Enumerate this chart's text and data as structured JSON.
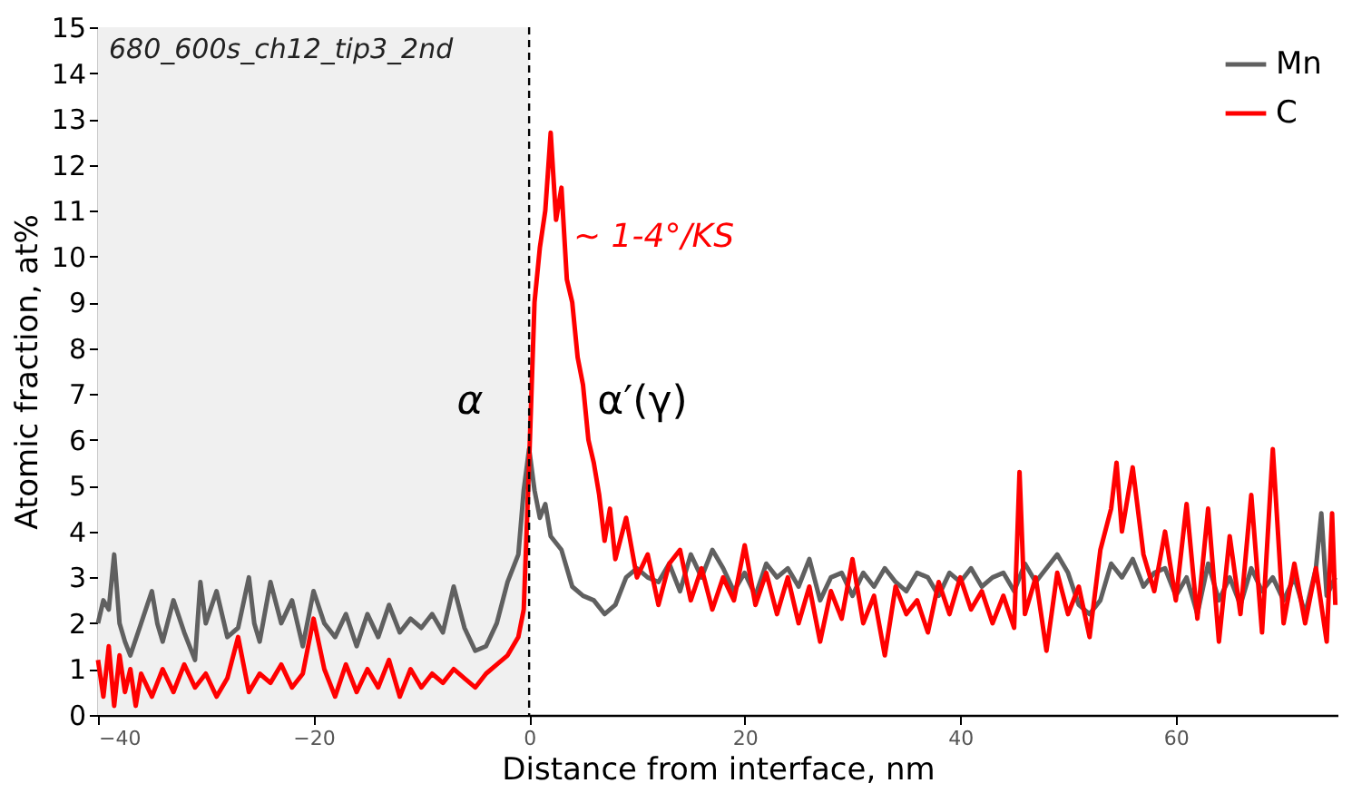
{
  "chart_data": {
    "type": "line",
    "xlabel": "Distance from interface, nm",
    "ylabel": "Atomic fraction, at%",
    "xlim": [
      -40,
      75
    ],
    "xticks": [
      {
        "value": -40,
        "label": "−40"
      },
      {
        "value": -20,
        "label": "−20"
      },
      0,
      20,
      40,
      60
    ],
    "ylim": [
      0,
      15
    ],
    "yticks": [
      0,
      1,
      2,
      3,
      4,
      5,
      6,
      7,
      8,
      9,
      10,
      11,
      12,
      13,
      14,
      15
    ],
    "grid": false,
    "legend": "top right",
    "line_style": "solid",
    "marker": "none",
    "bands": [
      {
        "axis": "x",
        "from": -40,
        "to": 0,
        "color": "#f0f0f0"
      }
    ],
    "ref_lines": [
      {
        "axis": "x",
        "value": 0,
        "color": "#000000",
        "line_style": "dashed"
      }
    ],
    "annotations": [
      "680_600s_ch12_tip3_2nd",
      "α",
      "α′(γ)",
      "~ 1-4°/KS"
    ],
    "series": [
      {
        "name": "Mn",
        "color": "#606060",
        "x": [
          -40,
          -39.5,
          -39,
          -38.5,
          -38,
          -37.5,
          -37,
          -36,
          -35,
          -34.5,
          -34,
          -33,
          -32,
          -31,
          -30.5,
          -30,
          -29,
          -28,
          -27,
          -26,
          -25.5,
          -25,
          -24,
          -23,
          -22,
          -21,
          -20,
          -19,
          -18,
          -17,
          -16,
          -15,
          -14,
          -13,
          -12,
          -11,
          -10,
          -9,
          -8,
          -7,
          -6,
          -5,
          -4,
          -3,
          -2,
          -1,
          -0.5,
          0,
          0.5,
          1,
          1.5,
          2,
          3,
          4,
          5,
          6,
          7,
          8,
          9,
          10,
          11,
          12,
          13,
          14,
          15,
          16,
          17,
          18,
          19,
          20,
          21,
          22,
          23,
          24,
          25,
          26,
          27,
          28,
          29,
          30,
          31,
          32,
          33,
          34,
          35,
          36,
          37,
          38,
          39,
          40,
          41,
          42,
          43,
          44,
          45,
          46,
          47,
          48,
          49,
          50,
          51,
          52,
          53,
          54,
          55,
          56,
          57,
          58,
          59,
          60,
          61,
          62,
          63,
          64,
          65,
          66,
          67,
          68,
          69,
          70,
          71,
          72,
          73,
          73.5,
          74,
          74.8
        ],
        "values": [
          2.0,
          2.5,
          2.3,
          3.5,
          2.0,
          1.6,
          1.3,
          2.0,
          2.7,
          2.0,
          1.6,
          2.5,
          1.8,
          1.2,
          2.9,
          2.0,
          2.7,
          1.7,
          1.9,
          3.0,
          2.0,
          1.6,
          2.9,
          2.0,
          2.5,
          1.5,
          2.7,
          2.0,
          1.7,
          2.2,
          1.5,
          2.2,
          1.7,
          2.4,
          1.8,
          2.1,
          1.9,
          2.2,
          1.8,
          2.8,
          1.9,
          1.4,
          1.5,
          2.0,
          2.9,
          3.5,
          4.9,
          5.8,
          4.9,
          4.3,
          4.6,
          3.9,
          3.6,
          2.8,
          2.6,
          2.5,
          2.2,
          2.4,
          3.0,
          3.2,
          3.0,
          2.9,
          3.3,
          2.7,
          3.5,
          3.0,
          3.6,
          3.2,
          2.7,
          3.1,
          2.6,
          3.3,
          3.0,
          3.2,
          2.8,
          3.4,
          2.5,
          3.0,
          3.1,
          2.6,
          3.1,
          2.8,
          3.2,
          2.9,
          2.7,
          3.1,
          3.0,
          2.6,
          3.1,
          2.9,
          3.2,
          2.8,
          3.0,
          3.1,
          2.7,
          3.3,
          2.9,
          3.2,
          3.5,
          3.1,
          2.4,
          2.2,
          2.5,
          3.3,
          3.0,
          3.4,
          2.8,
          3.1,
          3.2,
          2.6,
          3.0,
          2.2,
          3.3,
          2.5,
          3.0,
          2.4,
          3.2,
          2.7,
          3.0,
          2.5,
          3.0,
          2.2,
          3.2,
          4.4,
          2.6,
          3.0
        ]
      },
      {
        "name": "C",
        "color": "#ff0000",
        "x": [
          -40,
          -39.5,
          -39,
          -38.5,
          -38,
          -37.5,
          -37,
          -36.5,
          -36,
          -35,
          -34,
          -33,
          -32,
          -31,
          -30,
          -29,
          -28,
          -27,
          -26,
          -25,
          -24,
          -23,
          -22,
          -21,
          -20,
          -19,
          -18,
          -17,
          -16,
          -15,
          -14,
          -13,
          -12,
          -11,
          -10,
          -9,
          -8,
          -7,
          -6,
          -5,
          -4,
          -3,
          -2,
          -1,
          -0.5,
          0,
          0.5,
          1,
          1.5,
          2,
          2.5,
          3,
          3.5,
          4,
          4.5,
          5,
          5.5,
          6,
          6.5,
          7,
          7.5,
          8,
          9,
          10,
          11,
          12,
          13,
          14,
          15,
          16,
          17,
          18,
          19,
          20,
          21,
          22,
          23,
          24,
          25,
          26,
          27,
          28,
          29,
          30,
          31,
          32,
          33,
          34,
          35,
          36,
          37,
          38,
          39,
          40,
          41,
          42,
          43,
          44,
          45,
          45.5,
          46,
          47,
          48,
          49,
          50,
          51,
          52,
          53,
          54,
          54.5,
          55,
          56,
          57,
          58,
          59,
          60,
          61,
          62,
          63,
          64,
          65,
          66,
          67,
          68,
          69,
          70,
          71,
          72,
          73,
          74,
          74.5,
          74.8
        ],
        "values": [
          1.2,
          0.4,
          1.5,
          0.2,
          1.3,
          0.5,
          1.0,
          0.2,
          0.9,
          0.4,
          1.0,
          0.5,
          1.1,
          0.6,
          0.9,
          0.4,
          0.8,
          1.7,
          0.5,
          0.9,
          0.7,
          1.1,
          0.6,
          0.9,
          2.1,
          1.0,
          0.4,
          1.1,
          0.5,
          1.0,
          0.6,
          1.2,
          0.4,
          1.0,
          0.6,
          0.9,
          0.7,
          1.0,
          0.8,
          0.6,
          0.9,
          1.1,
          1.3,
          1.7,
          2.3,
          5.5,
          9.0,
          10.2,
          11.0,
          12.7,
          10.8,
          11.5,
          9.5,
          9.0,
          7.8,
          7.2,
          6.0,
          5.5,
          4.8,
          3.8,
          4.5,
          3.4,
          4.3,
          3.0,
          3.5,
          2.4,
          3.3,
          3.6,
          2.5,
          3.2,
          2.3,
          3.0,
          2.5,
          3.7,
          2.4,
          3.1,
          2.2,
          3.0,
          2.0,
          2.8,
          1.6,
          2.7,
          2.1,
          3.4,
          2.0,
          2.6,
          1.3,
          2.8,
          2.2,
          2.5,
          1.8,
          2.9,
          2.2,
          3.0,
          2.3,
          2.7,
          2.0,
          2.6,
          1.9,
          5.3,
          2.2,
          3.0,
          1.4,
          3.1,
          2.2,
          2.8,
          1.7,
          3.6,
          4.5,
          5.5,
          4.0,
          5.4,
          3.5,
          2.7,
          4.0,
          2.5,
          4.6,
          2.1,
          4.5,
          1.6,
          3.9,
          2.2,
          4.8,
          1.8,
          5.8,
          2.0,
          3.3,
          2.0,
          3.2,
          1.6,
          4.4,
          2.4
        ]
      }
    ]
  }
}
